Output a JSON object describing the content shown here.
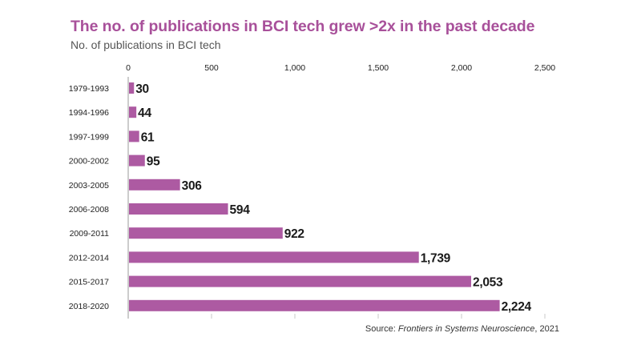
{
  "header": {
    "title": "The no. of publications in BCI tech grew >2x in the past decade",
    "subtitle": "No. of publications in BCI tech"
  },
  "footer": {
    "source_prefix": "Source: ",
    "source_name": "Frontiers in Systems Neuroscience",
    "source_suffix": ", 2021"
  },
  "colors": {
    "bar": "#ad5aa2",
    "title": "#a8509a",
    "axis": "#999999"
  },
  "chart_data": {
    "type": "bar",
    "orientation": "horizontal",
    "title": "The no. of publications in BCI tech grew >2x in the past decade",
    "subtitle": "No. of publications in BCI tech",
    "categories": [
      "1979-1993",
      "1994-1996",
      "1997-1999",
      "2000-2002",
      "2003-2005",
      "2006-2008",
      "2009-2011",
      "2012-2014",
      "2015-2017",
      "2018-2020"
    ],
    "values": [
      30,
      44,
      61,
      95,
      306,
      594,
      922,
      1739,
      2053,
      2224
    ],
    "value_labels": [
      "30",
      "44",
      "61",
      "95",
      "306",
      "594",
      "922",
      "1,739",
      "2,053",
      "2,224"
    ],
    "xlim": [
      0,
      2500
    ],
    "xticks": [
      0,
      500,
      1000,
      1500,
      2000,
      2500
    ],
    "xtick_labels": [
      "0",
      "500",
      "1,000",
      "1,500",
      "2,000",
      "2,500"
    ],
    "xaxis_position": "top",
    "grid": false,
    "legend": "none"
  }
}
